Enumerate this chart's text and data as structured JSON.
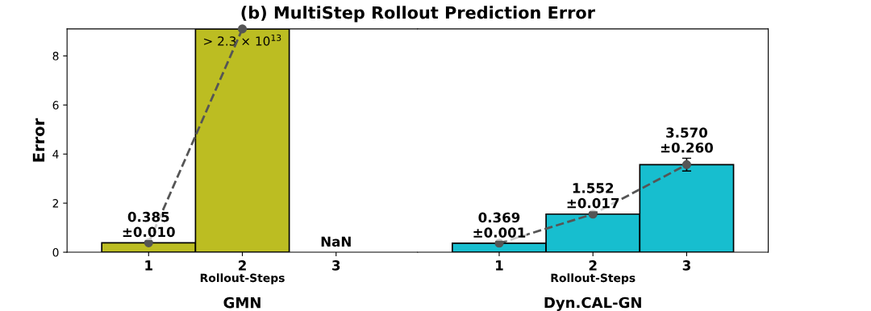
{
  "chart_data": [
    {
      "type": "bar",
      "title": "(b) MultiStep Rollout Prediction Error",
      "xlabel": "Rollout-Steps",
      "ylabel": "Error",
      "categories": [
        "1",
        "2",
        "3"
      ],
      "ylim": [
        0,
        9.1
      ],
      "yticks": [
        0,
        2,
        4,
        6,
        8
      ],
      "series": [
        {
          "color": "#bcbd22",
          "values": [
            0.385,
            9.1,
            null
          ],
          "errors": [
            0.01,
            null,
            null
          ],
          "value_labels": [
            "0.385\n±0.010",
            "> 2.3 × 10$^{13}$",
            "NaN"
          ]
        },
        {
          "type": "line",
          "color": "#555555",
          "marker": "circle",
          "line_style": "dashed",
          "values": [
            0.385,
            9.1,
            null
          ]
        }
      ],
      "annotations": [
        "GMN"
      ]
    },
    {
      "type": "bar",
      "xlabel": "Rollout-Steps",
      "categories": [
        "1",
        "2",
        "3"
      ],
      "ylim": [
        0,
        9.1
      ],
      "yticks": [
        0,
        2,
        4,
        6,
        8
      ],
      "tick_labels": "x",
      "series": [
        {
          "color": "#17becf",
          "values": [
            0.369,
            1.552,
            3.57
          ],
          "errors": [
            0.001,
            0.017,
            0.26
          ],
          "value_labels": [
            "0.369\n±0.001",
            "1.552\n±0.017",
            "3.570\n±0.260"
          ]
        },
        {
          "type": "line",
          "color": "#555555",
          "marker": "circle",
          "line_style": "dashed",
          "values": [
            0.369,
            1.552,
            3.57
          ]
        }
      ],
      "annotations": [
        "Dyn.CAL-GN"
      ]
    }
  ]
}
